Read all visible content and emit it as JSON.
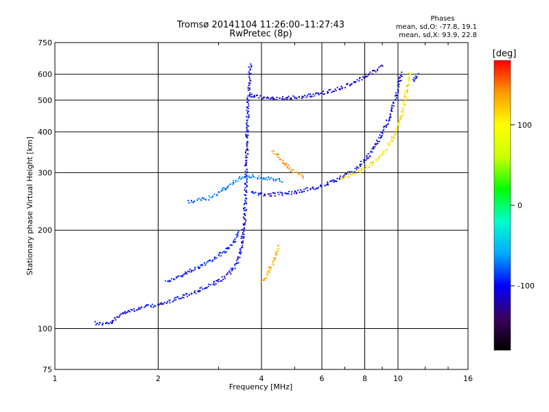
{
  "chart_data": {
    "type": "scatter",
    "title": "Tromsø 20141104 11:26:00–11:27:43",
    "subtitle": "RwPretec (8p)",
    "xlabel": "Frequency [MHz]",
    "ylabel": "Stationary phase Virtual Height [km]",
    "x_scale": "log",
    "y_scale": "log",
    "xlim": [
      1,
      16
    ],
    "ylim": [
      75,
      750
    ],
    "x_ticks": [
      {
        "value": 1,
        "label": "1"
      },
      {
        "value": 2,
        "label": "2"
      },
      {
        "value": 4,
        "label": "4"
      },
      {
        "value": 6,
        "label": "6"
      },
      {
        "value": 8,
        "label": "8"
      },
      {
        "value": 10,
        "label": "10"
      },
      {
        "value": 16,
        "label": "16"
      }
    ],
    "y_ticks": [
      {
        "value": 75,
        "label": "75"
      },
      {
        "value": 100,
        "label": "100"
      },
      {
        "value": 200,
        "label": "200"
      },
      {
        "value": 300,
        "label": "300"
      },
      {
        "value": 400,
        "label": "400"
      },
      {
        "value": 500,
        "label": "500"
      },
      {
        "value": 600,
        "label": "600"
      },
      {
        "value": 750,
        "label": "750"
      }
    ],
    "grid": true,
    "legend": {
      "title": "Phases",
      "lines": [
        "mean, sd,O: -77.8, 19.1",
        "mean, sd,X:  93.9, 22.8"
      ],
      "placement": "top-right"
    },
    "colorbar": {
      "label": "[deg]",
      "range": [
        -180,
        180
      ],
      "ticks": [
        {
          "value": 100,
          "label": "100"
        },
        {
          "value": 0,
          "label": "0"
        },
        {
          "value": -100,
          "label": "-100"
        }
      ],
      "stops": [
        "#000000",
        "#3a005f",
        "#0000ff",
        "#00aaff",
        "#00ffcc",
        "#00ff00",
        "#ccff00",
        "#ffff00",
        "#ff9900",
        "#ff0000"
      ]
    },
    "series": [
      {
        "points": [
          [
            1.3,
            105
          ],
          [
            1.33,
            104
          ],
          [
            1.37,
            104
          ],
          [
            1.42,
            104
          ],
          [
            1.46,
            105
          ],
          [
            1.52,
            109
          ],
          [
            1.58,
            113
          ],
          [
            1.64,
            114
          ],
          [
            1.72,
            115
          ],
          [
            1.82,
            117
          ],
          [
            1.92,
            118
          ],
          [
            2.02,
            119
          ],
          [
            2.12,
            121
          ],
          [
            2.25,
            124
          ],
          [
            2.4,
            127
          ],
          [
            2.56,
            130
          ],
          [
            2.72,
            134
          ],
          [
            2.9,
            138
          ],
          [
            3.05,
            142
          ],
          [
            3.2,
            148
          ],
          [
            3.32,
            155
          ],
          [
            3.42,
            165
          ],
          [
            3.48,
            178
          ],
          [
            3.52,
            195
          ],
          [
            3.55,
            215
          ],
          [
            3.57,
            240
          ],
          [
            3.58,
            265
          ],
          [
            3.59,
            290
          ],
          [
            3.6,
            320
          ],
          [
            3.61,
            355
          ],
          [
            3.62,
            390
          ],
          [
            3.63,
            430
          ],
          [
            3.64,
            480
          ],
          [
            3.66,
            540
          ],
          [
            3.68,
            600
          ],
          [
            3.7,
            650
          ]
        ],
        "phase": -105
      },
      {
        "points": [
          [
            2.1,
            140
          ],
          [
            2.3,
            145
          ],
          [
            2.5,
            152
          ],
          [
            2.7,
            158
          ],
          [
            2.9,
            165
          ],
          [
            3.1,
            172
          ],
          [
            3.25,
            180
          ],
          [
            3.35,
            190
          ],
          [
            3.4,
            200
          ]
        ],
        "phase": -95
      },
      {
        "points": [
          [
            2.45,
            245
          ],
          [
            2.6,
            248
          ],
          [
            2.8,
            252
          ],
          [
            3.0,
            262
          ],
          [
            3.2,
            275
          ],
          [
            3.4,
            288
          ],
          [
            3.6,
            295
          ],
          [
            3.8,
            293
          ],
          [
            4.0,
            290
          ],
          [
            4.3,
            288
          ],
          [
            4.6,
            285
          ]
        ],
        "phase": -70
      },
      {
        "points": [
          [
            3.7,
            262
          ],
          [
            3.9,
            259
          ],
          [
            4.2,
            258
          ],
          [
            4.6,
            260
          ],
          [
            5.0,
            263
          ],
          [
            5.5,
            268
          ],
          [
            6.0,
            275
          ],
          [
            6.5,
            284
          ],
          [
            7.0,
            296
          ],
          [
            7.5,
            310
          ],
          [
            8.0,
            330
          ],
          [
            8.4,
            355
          ],
          [
            8.8,
            385
          ],
          [
            9.2,
            420
          ],
          [
            9.5,
            460
          ],
          [
            9.8,
            510
          ],
          [
            10.0,
            560
          ],
          [
            10.2,
            610
          ]
        ],
        "phase": -105
      },
      {
        "points": [
          [
            6.8,
            290
          ],
          [
            7.3,
            298
          ],
          [
            7.8,
            308
          ],
          [
            8.4,
            322
          ],
          [
            9.0,
            345
          ],
          [
            9.5,
            375
          ],
          [
            9.9,
            410
          ],
          [
            10.2,
            450
          ],
          [
            10.4,
            500
          ],
          [
            10.6,
            560
          ],
          [
            10.8,
            620
          ]
        ],
        "phase": 110
      },
      {
        "points": [
          [
            3.7,
            520
          ],
          [
            4.0,
            512
          ],
          [
            4.5,
            510
          ],
          [
            5.0,
            512
          ],
          [
            5.6,
            520
          ],
          [
            6.2,
            532
          ],
          [
            6.8,
            550
          ],
          [
            7.4,
            570
          ],
          [
            8.0,
            595
          ],
          [
            8.6,
            620
          ],
          [
            9.0,
            640
          ]
        ],
        "phase": -110
      },
      {
        "points": [
          [
            4.3,
            350
          ],
          [
            4.5,
            335
          ],
          [
            4.7,
            318
          ],
          [
            4.9,
            305
          ],
          [
            5.1,
            298
          ],
          [
            5.3,
            292
          ]
        ],
        "phase": 140
      },
      {
        "points": [
          [
            4.0,
            140
          ],
          [
            4.1,
            145
          ],
          [
            4.2,
            152
          ],
          [
            4.3,
            160
          ],
          [
            4.4,
            170
          ],
          [
            4.5,
            180
          ]
        ],
        "phase": 130
      },
      {
        "points": [
          [
            11.0,
            570
          ],
          [
            11.2,
            590
          ],
          [
            11.4,
            605
          ]
        ],
        "phase": -100
      }
    ]
  }
}
